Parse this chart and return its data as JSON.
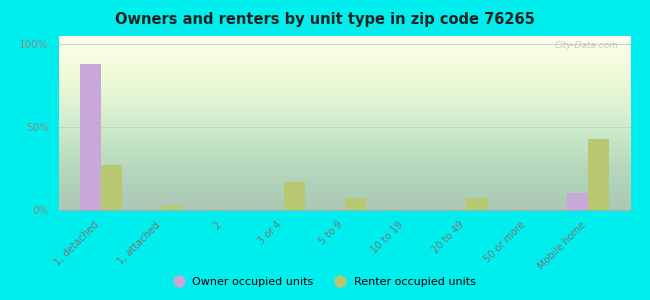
{
  "title": "Owners and renters by unit type in zip code 76265",
  "categories": [
    "1, detached",
    "1, attached",
    "2",
    "3 or 4",
    "5 to 9",
    "10 to 19",
    "20 to 49",
    "50 or more",
    "Mobile home"
  ],
  "owner_values": [
    88,
    0,
    0,
    0,
    0,
    0,
    0,
    0,
    10
  ],
  "renter_values": [
    27,
    3,
    0,
    17,
    7,
    0,
    7,
    0,
    43
  ],
  "owner_color": "#c8a8d8",
  "renter_color": "#b8c870",
  "background_color": "#00eeee",
  "yticks": [
    0,
    50,
    100
  ],
  "ylabels": [
    "0%",
    "50%",
    "100%"
  ],
  "ylim": [
    0,
    105
  ],
  "bar_width": 0.35,
  "legend_owner": "Owner occupied units",
  "legend_renter": "Renter occupied units",
  "watermark": "City-Data.com"
}
